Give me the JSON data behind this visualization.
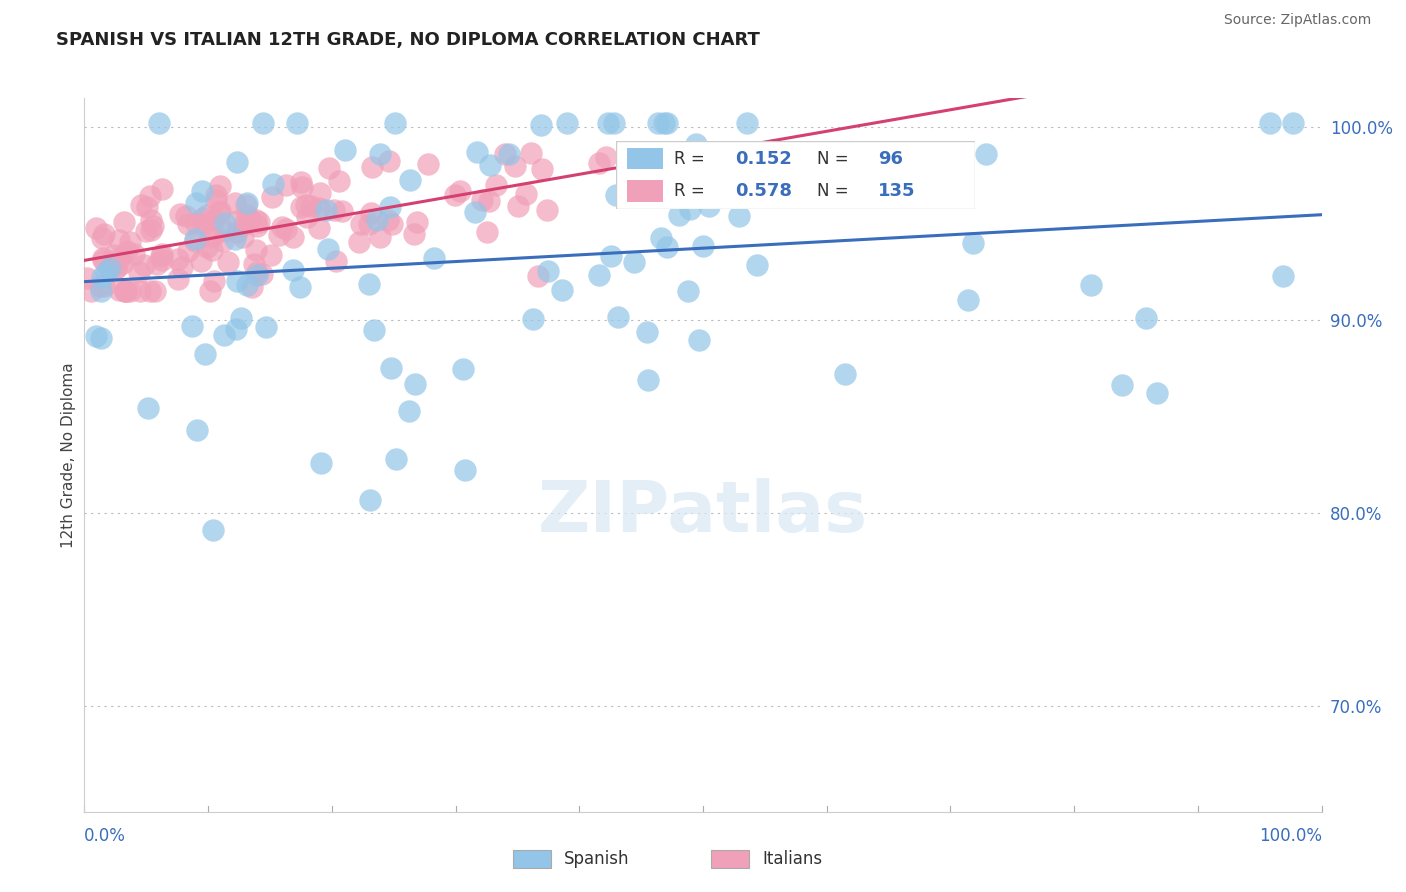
{
  "title": "SPANISH VS ITALIAN 12TH GRADE, NO DIPLOMA CORRELATION CHART",
  "source": "Source: ZipAtlas.com",
  "ylabel": "12th Grade, No Diploma",
  "spanish_color": "#92C5E8",
  "italian_color": "#F0A0B8",
  "spanish_line_color": "#3A6EBC",
  "italian_line_color": "#D44070",
  "legend_r_spanish": "0.152",
  "legend_n_spanish": "96",
  "legend_r_italian": "0.578",
  "legend_n_italian": "135",
  "xlim": [
    0.0,
    1.0
  ],
  "ylim": [
    0.645,
    1.015
  ],
  "ytick_positions": [
    0.7,
    0.8,
    0.9,
    1.0
  ],
  "ytick_labels": [
    "70.0%",
    "80.0%",
    "90.0%",
    "100.0%"
  ],
  "title_fontsize": 13,
  "source_fontsize": 10,
  "label_fontsize": 11,
  "tick_fontsize": 12
}
